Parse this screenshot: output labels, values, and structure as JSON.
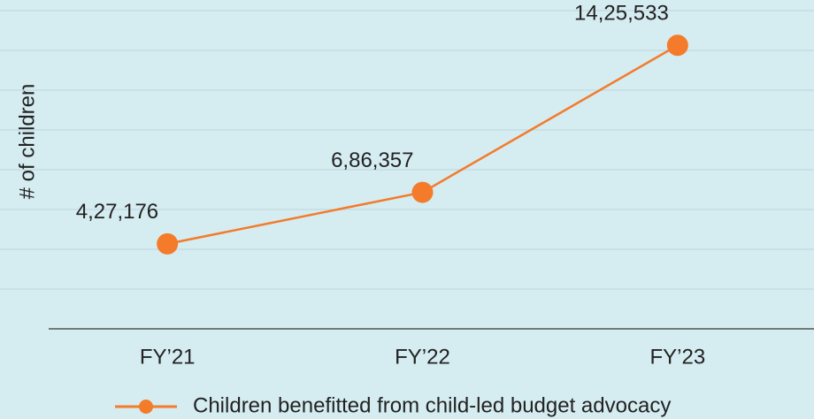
{
  "chart_data": {
    "type": "line",
    "y_label": "# of children",
    "categories": [
      "FY’21",
      "FY’22",
      "FY’23"
    ],
    "series": [
      {
        "name": "Children benefitted from child-led budget advocacy",
        "color": "#f47b2a",
        "values": [
          427176,
          686357,
          1425533
        ],
        "value_labels": [
          "4,27,176",
          "6,86,357",
          "14,25,533"
        ]
      }
    ],
    "ylim": [
      0,
      1600000
    ],
    "yticks": [
      0,
      200000,
      400000,
      600000,
      800000,
      1000000,
      1200000,
      1400000,
      1600000
    ],
    "grid": true,
    "legend": "bottom"
  }
}
